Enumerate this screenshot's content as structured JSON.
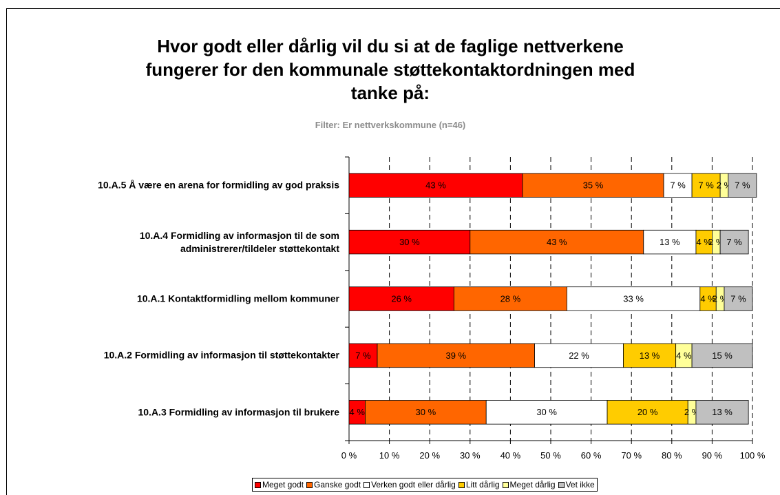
{
  "chart_data": {
    "type": "stacked_barh",
    "title": "Hvor godt eller dårlig vil du si at de faglige nettverkene\nfungerer for den kommunale støttekontaktordningen med\ntanke på:",
    "subtitle": "Filter: Er nettverkskommune (n=46)",
    "categories": [
      "10.A.5 Å være en arena for formidling av god praksis",
      "10.A.4 Formidling av informasjon til de som\nadministrerer/tildeler støttekontakt",
      "10.A.1 Kontaktformidling mellom kommuner",
      "10.A.2 Formidling av informasjon til støttekontakter",
      "10.A.3 Formidling av informasjon til brukere"
    ],
    "series": [
      {
        "name": "Meget godt",
        "color": "#ff0000",
        "values": [
          43,
          30,
          26,
          7,
          4
        ],
        "value_labels": [
          "43 %",
          "30 %",
          "26 %",
          "7 %",
          "4 %"
        ]
      },
      {
        "name": "Ganske godt",
        "color": "#ff6600",
        "values": [
          35,
          43,
          28,
          39,
          30
        ],
        "value_labels": [
          "35 %",
          "43 %",
          "28 %",
          "39 %",
          "30 %"
        ]
      },
      {
        "name": "Verken godt eller dårlig",
        "color": "#ffffff",
        "values": [
          7,
          13,
          33,
          22,
          30
        ],
        "value_labels": [
          "7 %",
          "13 %",
          "33 %",
          "22 %",
          "30 %"
        ]
      },
      {
        "name": "Litt dårlig",
        "color": "#ffcc00",
        "values": [
          7,
          4,
          4,
          13,
          20
        ],
        "value_labels": [
          "7 %",
          "4 %",
          "4 %",
          "13 %",
          "20 %"
        ]
      },
      {
        "name": "Meget dårlig",
        "color": "#ffff99",
        "values": [
          2,
          2,
          2,
          4,
          2
        ],
        "value_labels": [
          "2 %",
          "2 %",
          "2 %",
          "4 %",
          "2 %"
        ]
      },
      {
        "name": "Vet ikke",
        "color": "#c0c0c0",
        "values": [
          7,
          7,
          7,
          15,
          13
        ],
        "value_labels": [
          "7 %",
          "7 %",
          "7 %",
          "15 %",
          "13 %"
        ]
      }
    ],
    "xlim": [
      0,
      100
    ],
    "xticks": [
      {
        "value": 0,
        "label": "0 %"
      },
      {
        "value": 10,
        "label": "10 %"
      },
      {
        "value": 20,
        "label": "20 %"
      },
      {
        "value": 30,
        "label": "30 %"
      },
      {
        "value": 40,
        "label": "40 %"
      },
      {
        "value": 50,
        "label": "50 %"
      },
      {
        "value": 60,
        "label": "60 %"
      },
      {
        "value": 70,
        "label": "70 %"
      },
      {
        "value": 80,
        "label": "80 %"
      },
      {
        "value": 90,
        "label": "90 %"
      },
      {
        "value": 100,
        "label": "100 %"
      }
    ],
    "grid": true,
    "legend": "bottom"
  }
}
